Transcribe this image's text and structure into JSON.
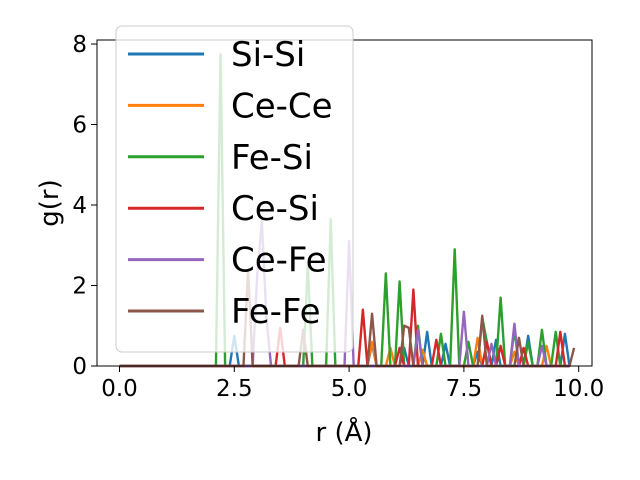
{
  "chart_data": {
    "type": "line",
    "title": "",
    "xlabel": "r (Å)",
    "ylabel": "g(r)",
    "xlim": [
      -0.49,
      10.29
    ],
    "ylim": [
      0,
      8.1
    ],
    "xticks": [
      0.0,
      2.5,
      5.0,
      7.5,
      10.0
    ],
    "xtick_labels": [
      "0.0",
      "2.5",
      "5.0",
      "7.5",
      "10.0"
    ],
    "yticks": [
      0,
      2,
      4,
      6,
      8
    ],
    "ytick_labels": [
      "0",
      "2",
      "4",
      "6",
      "8"
    ],
    "legend_position": "top-left",
    "series": [
      {
        "name": "Si-Si",
        "color": "#1f77b4",
        "x": [
          0,
          2.4,
          2.5,
          2.6,
          5.4,
          5.5,
          5.6,
          6.1,
          6.2,
          6.3,
          6.6,
          6.7,
          6.8,
          7.0,
          7.1,
          7.2,
          7.7,
          7.8,
          7.9,
          8.1,
          8.2,
          8.3,
          8.8,
          8.9,
          9.0,
          9.6,
          9.7,
          9.8
        ],
        "y": [
          0,
          0,
          0.75,
          0,
          0,
          0.55,
          0,
          0,
          0.45,
          0,
          0,
          0.85,
          0,
          0,
          0.55,
          0,
          0,
          0.35,
          0,
          0,
          0.65,
          0,
          0,
          0.75,
          0,
          0,
          0.8,
          0
        ]
      },
      {
        "name": "Ce-Ce",
        "color": "#ff7f0e",
        "x": [
          0,
          5.4,
          5.5,
          5.6,
          5.8,
          5.9,
          6.0,
          6.5,
          6.6,
          6.7,
          7.7,
          7.8,
          7.9,
          8.5,
          8.6,
          8.7,
          9.2,
          9.3,
          9.4,
          9.8
        ],
        "y": [
          0,
          0,
          0.6,
          0,
          0,
          0.45,
          0,
          0,
          0.4,
          0,
          0,
          0.7,
          0,
          0,
          0.35,
          0,
          0,
          0.5,
          0,
          0
        ]
      },
      {
        "name": "Fe-Si",
        "color": "#2ca02c",
        "x": [
          0,
          2.1,
          2.2,
          2.3,
          4.0,
          4.1,
          4.2,
          4.5,
          4.6,
          4.7,
          5.7,
          5.8,
          5.9,
          6.0,
          6.1,
          6.2,
          6.4,
          6.5,
          6.6,
          6.9,
          7.0,
          7.1,
          7.2,
          7.3,
          7.4,
          7.5,
          7.6,
          7.7,
          7.8,
          7.9,
          8.1,
          8.2,
          8.3,
          8.4,
          8.5,
          8.6,
          8.7,
          8.8,
          8.9,
          9.0,
          9.1,
          9.2,
          9.3,
          9.4,
          9.5,
          9.6,
          9.7,
          9.8
        ],
        "y": [
          0,
          0,
          7.75,
          0,
          0,
          2.5,
          0,
          0,
          3.65,
          0,
          0,
          2.3,
          0,
          0,
          2.1,
          0,
          0,
          1.0,
          0,
          0,
          0.8,
          0,
          0,
          2.9,
          0,
          0,
          0.6,
          0,
          0,
          1.2,
          0,
          0,
          1.7,
          0,
          0,
          0.9,
          0,
          0,
          0.6,
          0,
          0,
          0.9,
          0,
          0,
          0.85,
          0,
          0,
          0
        ]
      },
      {
        "name": "Ce-Si",
        "color": "#d62728",
        "x": [
          0,
          3.4,
          3.5,
          3.6,
          5.2,
          5.3,
          5.4,
          6.0,
          6.1,
          6.2,
          6.3,
          6.4,
          6.5,
          6.8,
          6.9,
          7.0,
          7.9,
          8.0,
          8.1,
          8.2,
          8.3,
          8.4,
          8.7,
          8.8,
          8.9,
          9.5,
          9.6,
          9.7,
          9.8
        ],
        "y": [
          0,
          0,
          0.95,
          0,
          0,
          1.4,
          0,
          0,
          0.45,
          0,
          0,
          1.9,
          0,
          0,
          0.65,
          0,
          0,
          0.6,
          0,
          0,
          0.5,
          0,
          0,
          0.45,
          0,
          0,
          0.85,
          0,
          0
        ]
      },
      {
        "name": "Ce-Fe",
        "color": "#9467bd",
        "x": [
          0,
          2.9,
          3.0,
          3.1,
          3.2,
          3.3,
          4.9,
          5.0,
          5.1,
          6.4,
          6.5,
          6.6,
          7.4,
          7.5,
          7.6,
          8.0,
          8.1,
          8.2,
          8.5,
          8.6,
          8.7,
          9.1,
          9.2,
          9.3,
          9.7,
          9.8
        ],
        "y": [
          0,
          0,
          2.3,
          3.6,
          1.2,
          0,
          0,
          3.1,
          0,
          0,
          0.9,
          0,
          0,
          1.35,
          0,
          0,
          0.55,
          0,
          0,
          1.05,
          0,
          0,
          0.5,
          0,
          0,
          0
        ]
      },
      {
        "name": "Fe-Fe",
        "color": "#8c564b",
        "x": [
          0,
          2.7,
          2.8,
          2.9,
          3.9,
          4.0,
          4.1,
          5.4,
          5.5,
          5.6,
          6.1,
          6.2,
          6.3,
          6.4,
          7.8,
          7.9,
          8.0,
          8.6,
          8.7,
          8.8,
          9.8,
          9.9
        ],
        "y": [
          0,
          0,
          2.4,
          0,
          0,
          0.9,
          0,
          0,
          1.3,
          0,
          0,
          1.0,
          0.95,
          0,
          0,
          1.25,
          0,
          0,
          0.7,
          0,
          0,
          0.45
        ]
      }
    ]
  }
}
